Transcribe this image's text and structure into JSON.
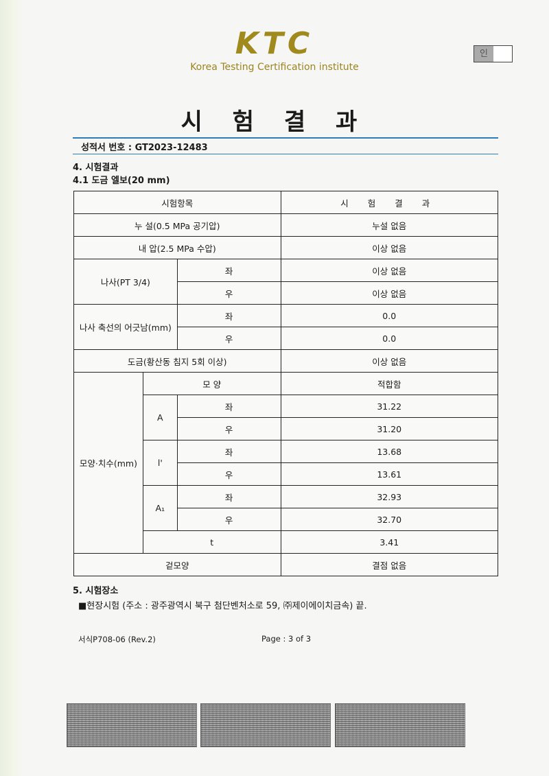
{
  "header": {
    "logo_text": "KTC",
    "logo_subtitle": "Korea Testing Certification institute",
    "stamp_label": "인"
  },
  "title": "시 험 결 과",
  "cert_number": "성적서 번호 : GT2023-12483",
  "section4": "4. 시험결과",
  "section41": "4.1 도금 엘보(20 mm)",
  "table": {
    "head": [
      "시험항목",
      "시 험 결 과"
    ],
    "leak": [
      "누 설(0.5 MPa 공기압)",
      "누설 없음"
    ],
    "pressure": [
      "내 압(2.5 MPa 수압)",
      "이상 없음"
    ],
    "thread": {
      "label": "나사(PT 3/4)",
      "left": "좌",
      "left_val": "이상 없음",
      "right": "우",
      "right_val": "이상 없음"
    },
    "axis": {
      "label": "나사 축선의 어긋남(mm)",
      "left": "좌",
      "left_val": "0.0",
      "right": "우",
      "right_val": "0.0"
    },
    "plating": [
      "도금(황산동 침지 5회 이상)",
      "이상 없음"
    ],
    "dim": {
      "label": "모양·치수(mm)",
      "shape": "모 양",
      "shape_val": "적합함",
      "A": {
        "label": "A",
        "left": "좌",
        "left_val": "31.22",
        "right": "우",
        "right_val": "31.20"
      },
      "I": {
        "label": "l'",
        "left": "좌",
        "left_val": "13.68",
        "right": "우",
        "right_val": "13.61"
      },
      "A1": {
        "label": "A₁",
        "left": "좌",
        "left_val": "32.93",
        "right": "우",
        "right_val": "32.70"
      },
      "t": "t",
      "t_val": "3.41"
    },
    "appearance": [
      "겉모양",
      "결점 없음"
    ]
  },
  "section5": "5. 시험장소",
  "place": "■현장시험 (주소 : 광주광역시 북구 첨단벤처소로 59, ㈜제이에이치금속) 끝.",
  "footer": {
    "form": "서식P708-06 (Rev.2)",
    "page": "Page : 3 of 3"
  }
}
